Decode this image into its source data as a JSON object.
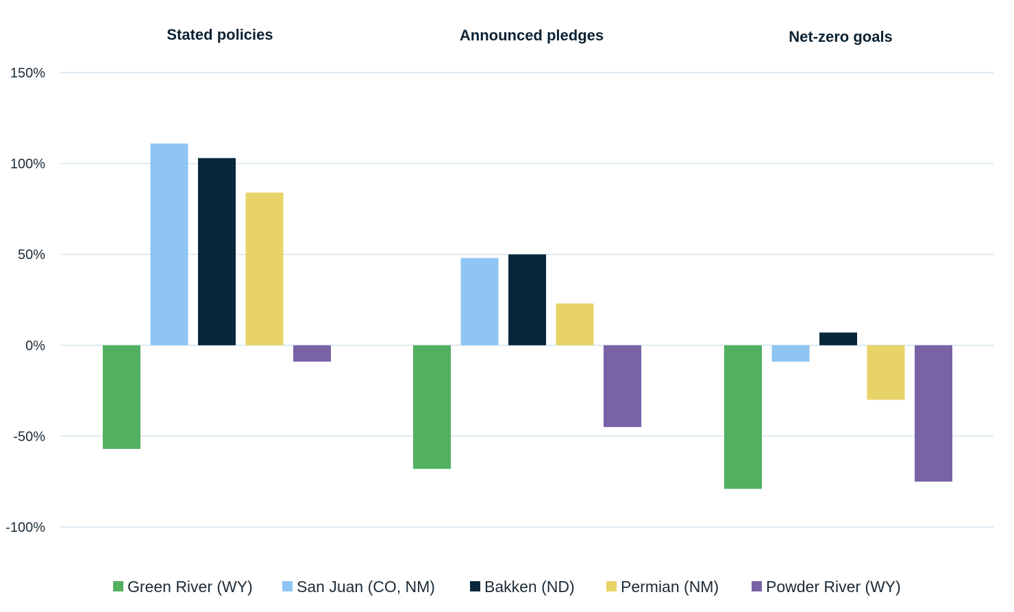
{
  "chart_data": {
    "type": "bar",
    "panels": [
      "Stated policies",
      "Announced pledges",
      "Net-zero goals"
    ],
    "series": [
      {
        "name": "Green River (WY)",
        "color": "#52b061",
        "values": [
          -57,
          -68,
          -79
        ]
      },
      {
        "name": "San Juan (CO, NM)",
        "color": "#8ec5f2",
        "values": [
          111,
          48,
          -9
        ]
      },
      {
        "name": "Bakken (ND)",
        "color": "#08273b",
        "values": [
          103,
          50,
          7
        ]
      },
      {
        "name": "Permian (NM)",
        "color": "#e8d368",
        "values": [
          84,
          23,
          -30
        ]
      },
      {
        "name": "Powder River (WY)",
        "color": "#7962a6",
        "values": [
          -9,
          -45,
          -75
        ]
      }
    ],
    "ylim": [
      -100,
      150
    ],
    "yticks": [
      150,
      100,
      50,
      0,
      -50,
      -100
    ],
    "ytick_labels": [
      "150%",
      "100%",
      "50%",
      "0%",
      "-50%",
      "-100%"
    ],
    "grid": true,
    "legend_position": "bottom"
  }
}
